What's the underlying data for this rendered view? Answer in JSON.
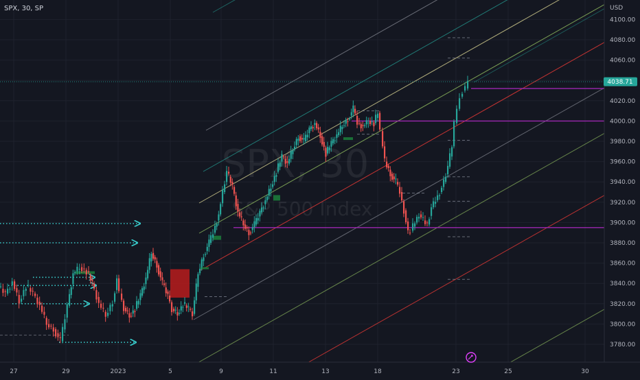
{
  "header": {
    "symbol_label": "SPX, 30, SP",
    "currency": "USD"
  },
  "watermark": {
    "ticker": "SPX, 30",
    "name": "S&P 500 Index"
  },
  "colors": {
    "background": "#141721",
    "up_candle": "#26a69a",
    "down_candle": "#ef5350",
    "price_line": "#26a69a",
    "level_line": "#9c27b0",
    "pitchfork_red": "#e53935",
    "pitchfork_yellow": "#e6e09a",
    "pitchfork_green": "#9ccc65",
    "pitchfork_teal": "#26a69a",
    "pitchfork_gray": "#b0b3bd",
    "zone_red": "#b71c1c",
    "zone_green": "#1b7a3a",
    "arrow_dots": "#38c9c9",
    "axis_text": "#b2b5be"
  },
  "chart_data": {
    "type": "candlestick",
    "symbol": "SPX",
    "interval": "30",
    "exchange": "SP",
    "ylim": [
      3765,
      4112
    ],
    "y_ticks": [
      3780,
      3800,
      3820,
      3840,
      3860,
      3880,
      3900,
      3920,
      3940,
      3960,
      3980,
      4000,
      4020,
      4040,
      4060,
      4080,
      4100
    ],
    "y_tick_labels": [
      "3780.00",
      "3800.00",
      "3820.00",
      "3840.00",
      "3860.00",
      "3880.00",
      "3900.00",
      "3920.00",
      "3940.00",
      "3960.00",
      "3980.00",
      "4000.00",
      "4020.00",
      "4040.00",
      "4060.00",
      "4080.00",
      "4100.00"
    ],
    "x_tick_labels": [
      "27",
      "29",
      "2023",
      "5",
      "9",
      "11",
      "13",
      "18",
      "23",
      "25",
      "30"
    ],
    "last_price": 4038.71,
    "last_price_label": "4038.71",
    "levels": [
      4032,
      4000,
      3895
    ],
    "price_path": [
      [
        0,
        3837
      ],
      [
        10,
        3830
      ],
      [
        20,
        3842
      ],
      [
        30,
        3822
      ],
      [
        40,
        3838
      ],
      [
        50,
        3830
      ],
      [
        60,
        3818
      ],
      [
        70,
        3800
      ],
      [
        80,
        3795
      ],
      [
        90,
        3783
      ],
      [
        100,
        3818
      ],
      [
        108,
        3850
      ],
      [
        118,
        3856
      ],
      [
        128,
        3852
      ],
      [
        136,
        3840
      ],
      [
        146,
        3820
      ],
      [
        156,
        3808
      ],
      [
        166,
        3822
      ],
      [
        172,
        3845
      ],
      [
        176,
        3830
      ],
      [
        182,
        3816
      ],
      [
        190,
        3808
      ],
      [
        198,
        3815
      ],
      [
        206,
        3828
      ],
      [
        214,
        3845
      ],
      [
        222,
        3870
      ],
      [
        230,
        3858
      ],
      [
        238,
        3840
      ],
      [
        246,
        3828
      ],
      [
        252,
        3815
      ],
      [
        260,
        3810
      ],
      [
        268,
        3820
      ],
      [
        276,
        3815
      ],
      [
        282,
        3810
      ],
      [
        290,
        3850
      ],
      [
        298,
        3868
      ],
      [
        306,
        3880
      ],
      [
        312,
        3890
      ],
      [
        320,
        3908
      ],
      [
        326,
        3930
      ],
      [
        332,
        3950
      ],
      [
        340,
        3935
      ],
      [
        348,
        3910
      ],
      [
        356,
        3898
      ],
      [
        364,
        3890
      ],
      [
        372,
        3898
      ],
      [
        380,
        3910
      ],
      [
        388,
        3922
      ],
      [
        396,
        3935
      ],
      [
        404,
        3950
      ],
      [
        412,
        3965
      ],
      [
        420,
        3958
      ],
      [
        428,
        3972
      ],
      [
        436,
        3985
      ],
      [
        444,
        3980
      ],
      [
        452,
        3992
      ],
      [
        460,
        3998
      ],
      [
        468,
        3985
      ],
      [
        476,
        3968
      ],
      [
        484,
        3978
      ],
      [
        492,
        3986
      ],
      [
        500,
        3995
      ],
      [
        508,
        4002
      ],
      [
        516,
        4012
      ],
      [
        522,
        3998
      ],
      [
        530,
        3995
      ],
      [
        538,
        4000
      ],
      [
        546,
        3998
      ],
      [
        552,
        4008
      ],
      [
        556,
        3990
      ],
      [
        562,
        3960
      ],
      [
        570,
        3948
      ],
      [
        578,
        3940
      ],
      [
        584,
        3930
      ],
      [
        590,
        3912
      ],
      [
        596,
        3890
      ],
      [
        600,
        3892
      ],
      [
        606,
        3900
      ],
      [
        612,
        3908
      ],
      [
        618,
        3902
      ],
      [
        624,
        3898
      ],
      [
        630,
        3915
      ],
      [
        636,
        3922
      ],
      [
        642,
        3930
      ],
      [
        648,
        3940
      ],
      [
        654,
        3955
      ],
      [
        660,
        3975
      ],
      [
        664,
        3998
      ],
      [
        668,
        4012
      ],
      [
        672,
        4024
      ],
      [
        676,
        4030
      ],
      [
        680,
        4032
      ],
      [
        684,
        4038.71
      ]
    ]
  }
}
